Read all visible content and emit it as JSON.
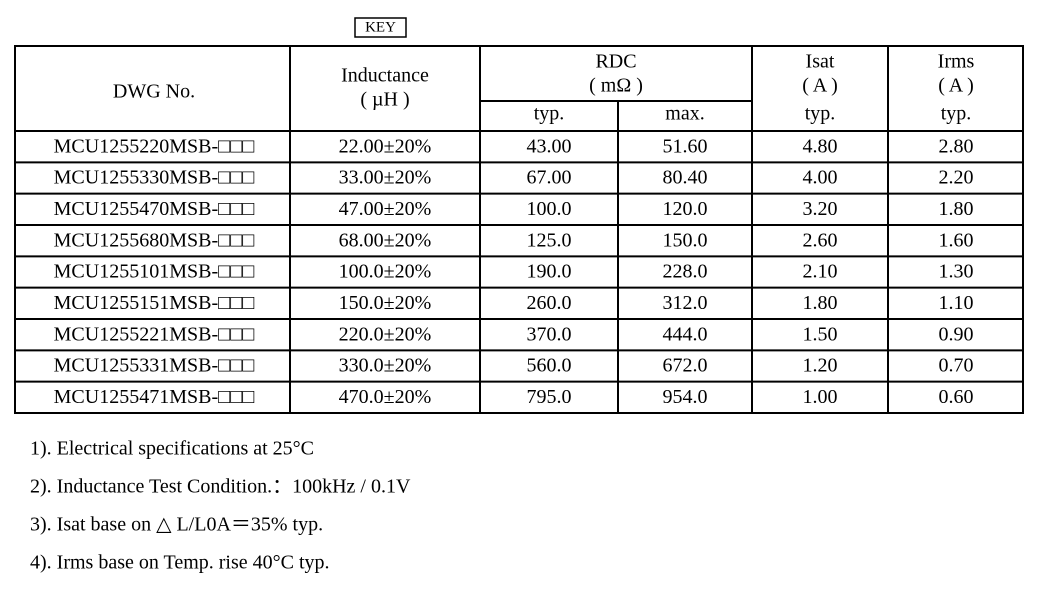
{
  "key": "KEY",
  "table": {
    "header": {
      "dwg": "DWG No.",
      "inductance": "Inductance",
      "inductance_unit": "( µH )",
      "rdc": "RDC",
      "rdc_unit": "( mΩ )",
      "rdc_typ": "typ.",
      "rdc_max": "max.",
      "isat": "Isat",
      "isat_unit": "( A )",
      "isat_typ": "typ.",
      "irms": "Irms",
      "irms_unit": "( A )",
      "irms_typ": "typ."
    },
    "rows": [
      [
        "MCU1255220MSB-□□□",
        "22.00±20%",
        "43.00",
        "51.60",
        "4.80",
        "2.80"
      ],
      [
        "MCU1255330MSB-□□□",
        "33.00±20%",
        "67.00",
        "80.40",
        "4.00",
        "2.20"
      ],
      [
        "MCU1255470MSB-□□□",
        "47.00±20%",
        "100.0",
        "120.0",
        "3.20",
        "1.80"
      ],
      [
        "MCU1255680MSB-□□□",
        "68.00±20%",
        "125.0",
        "150.0",
        "2.60",
        "1.60"
      ],
      [
        "MCU1255101MSB-□□□",
        "100.0±20%",
        "190.0",
        "228.0",
        "2.10",
        "1.30"
      ],
      [
        "MCU1255151MSB-□□□",
        "150.0±20%",
        "260.0",
        "312.0",
        "1.80",
        "1.10"
      ],
      [
        "MCU1255221MSB-□□□",
        "220.0±20%",
        "370.0",
        "444.0",
        "1.50",
        "0.90"
      ],
      [
        "MCU1255331MSB-□□□",
        "330.0±20%",
        "560.0",
        "672.0",
        "1.20",
        "0.70"
      ],
      [
        "MCU1255471MSB-□□□",
        "470.0±20%",
        "795.0",
        "954.0",
        "1.00",
        "0.60"
      ]
    ]
  },
  "notes": [
    "1). Electrical specifications at 25°C",
    "2). Inductance Test Condition.：100kHz / 0.1V",
    "3). Isat base on △ L/L0A＝35% typ.",
    "4). Irms base on Temp. rise 40°C typ."
  ]
}
